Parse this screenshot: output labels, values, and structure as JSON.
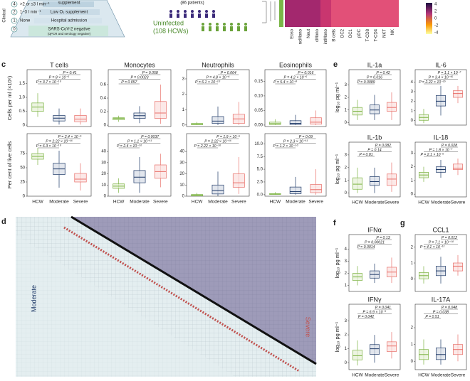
{
  "overview": {
    "clinical": "Clinical",
    "levels": [
      {
        "n": "4",
        "text": ">2 or ≤3 l min⁻¹",
        "note": "supplement"
      },
      {
        "n": "2",
        "text": "1–3 l min⁻¹",
        "note": "Low O₂ supplement"
      },
      {
        "n": "1",
        "text": "None",
        "note": "Hospital admission"
      },
      {
        "n": "0",
        "note": "SARS-CoV-2 negative",
        "sub": "(qPCR and serology negative)"
      }
    ],
    "patients": "(86 patients)",
    "uninfected": "Uninfected",
    "hcw": "(108 HCWs)"
  },
  "heatmap": {
    "labels": [
      "Eoso",
      "ncMono",
      "Neut",
      "cMono",
      "intMono",
      "B cells",
      "DC2",
      "DC1",
      "pDC",
      "T-CD8",
      "T-CD4",
      "NKT",
      "NK"
    ],
    "scale_ticks": [
      4,
      2,
      0,
      -2,
      -4
    ]
  },
  "letters": {
    "c": "c",
    "d": "d",
    "e": "e",
    "f": "f",
    "g": "g"
  },
  "axis_labels": {
    "cells": "Cells per ml (×10⁶)",
    "percent": "Per cent of live cells",
    "log": "log₁₀ pg ml⁻¹"
  },
  "groups": [
    "HCW",
    "Moderate",
    "Severe"
  ],
  "matrix": {
    "left": "Moderate",
    "right": "Severe"
  },
  "panels": [
    {
      "title": "T cells",
      "ylim": [
        -0.05,
        2.0
      ],
      "yticks": [
        0,
        0.5,
        {
          "value": 1,
          "label": "1.0"
        },
        1.5
      ],
      "pvalues": [
        "P = 0.41",
        "P = 8 × 10⁻⁵",
        "P = 3.7 × 10⁻¹⁰"
      ],
      "boxes": [
        [
          0.3,
          0.5,
          0.65,
          0.8,
          1.15
        ],
        [
          0.02,
          0.15,
          0.25,
          0.35,
          0.6
        ],
        [
          0.02,
          0.12,
          0.22,
          0.35,
          0.6
        ]
      ]
    },
    {
      "title": "Monocytes",
      "ylim": [
        -0.02,
        0.82
      ],
      "yticks": [
        0,
        0.2,
        0.4,
        0.6
      ],
      "pvalues": [
        "P = 0.058",
        "P = 0.0023",
        "P = 0.057"
      ],
      "boxes": [
        [
          0.05,
          0.08,
          0.1,
          0.11,
          0.14
        ],
        [
          0.03,
          0.1,
          0.14,
          0.18,
          0.28
        ],
        [
          0.02,
          0.1,
          0.18,
          0.35,
          0.6
        ]
      ]
    },
    {
      "title": "Neutrophils",
      "ylim": [
        -0.1,
        3.6
      ],
      "yticks": [
        0,
        1,
        2,
        3
      ],
      "pvalues": [
        "P = 0.064",
        "P = 4.8 × 10⁻⁶",
        "P = 6.1 × 10⁻¹⁰"
      ],
      "boxes": [
        [
          0,
          0.02,
          0.05,
          0.1,
          0.2
        ],
        [
          0,
          0.1,
          0.25,
          0.55,
          1.2
        ],
        [
          0,
          0.1,
          0.4,
          0.7,
          1.5
        ]
      ]
    },
    {
      "title": "Eosinophils",
      "ylim": [
        -0.005,
        0.19
      ],
      "yticks": [
        {
          "value": 0,
          "label": "0.00"
        },
        0.05,
        {
          "value": 0.1,
          "label": "0.10"
        },
        0.15
      ],
      "pvalues": [
        "P = 0.016",
        "P = 4.2 × 10⁻⁵",
        "P = 5.4 × 10⁻⁸"
      ],
      "boxes": [
        [
          0,
          0.002,
          0.005,
          0.01,
          0.02
        ],
        [
          0,
          0.002,
          0.006,
          0.015,
          0.035
        ],
        [
          0,
          0.003,
          0.01,
          0.025,
          0.05
        ]
      ]
    },
    {
      "ylim": [
        0,
        110
      ],
      "yticks": [
        0,
        25,
        50,
        75
      ],
      "pvalues": [
        "P = 2.4 × 10⁻⁶",
        "P = 2.22 × 10⁻¹⁶",
        "P = 6.3 × 10⁻¹⁰"
      ],
      "boxes": [
        [
          55,
          65,
          70,
          75,
          85
        ],
        [
          15,
          38,
          48,
          58,
          80
        ],
        [
          10,
          25,
          30,
          40,
          58
        ]
      ]
    },
    {
      "ylim": [
        0,
        56
      ],
      "yticks": [
        0,
        10,
        20,
        30,
        40
      ],
      "pvalues": [
        "P = 0.0037",
        "P = 1.1 × 10⁻¹¹",
        "P = 2.4 × 10⁻¹⁰"
      ],
      "boxes": [
        [
          3,
          7,
          9,
          11,
          16
        ],
        [
          3,
          12,
          17,
          23,
          35
        ],
        [
          8,
          16,
          22,
          28,
          38
        ]
      ]
    },
    {
      "ylim": [
        0,
        56
      ],
      "yticks": [
        0,
        10,
        20,
        30,
        40
      ],
      "pvalues": [
        "P = 1.9 × 10⁻⁵",
        "P = 2.22 × 10⁻¹⁶",
        "P = 2.22 × 10⁻¹⁶"
      ],
      "boxes": [
        [
          0,
          0.3,
          0.8,
          1.5,
          3
        ],
        [
          0,
          2,
          5,
          10,
          22
        ],
        [
          2,
          8,
          12,
          20,
          35
        ]
      ]
    },
    {
      "ylim": [
        -0.3,
        12
      ],
      "yticks": [
        {
          "value": 0,
          "label": "0.0"
        },
        2.5,
        {
          "value": 5,
          "label": "5.0"
        },
        7.5,
        {
          "value": 10,
          "label": "10.0"
        }
      ],
      "pvalues": [
        "P = 0.09",
        "P = 2.3 × 10⁻¹¹",
        "P = 1.2 × 10⁻¹⁰"
      ],
      "boxes": [
        [
          0,
          0.05,
          0.1,
          0.2,
          0.5
        ],
        [
          0,
          0.2,
          0.6,
          1.5,
          3.5
        ],
        [
          0,
          0.4,
          1,
          2,
          5
        ]
      ]
    },
    {
      "title": "IL-1a",
      "ylim": [
        -0.2,
        4.2
      ],
      "yticks": [
        0,
        1,
        2,
        3
      ],
      "pvalues": [
        "P = 0.42",
        "P = 0.016",
        "P = 0.0089"
      ],
      "boxes": [
        [
          0.2,
          0.6,
          0.9,
          1.2,
          1.8
        ],
        [
          0.2,
          0.7,
          1.0,
          1.4,
          2.2
        ],
        [
          0.2,
          0.9,
          1.2,
          1.6,
          2.4
        ]
      ]
    },
    {
      "title": "IL-6",
      "ylim": [
        -0.5,
        5.3
      ],
      "yticks": [
        0,
        1,
        2,
        3,
        4
      ],
      "pvalues": [
        "P = 1.1 × 10⁻⁷",
        "P = 3.4 × 10⁻¹⁵",
        "P = 2.22 × 10⁻¹⁶"
      ],
      "boxes": [
        [
          -0.3,
          0,
          0.3,
          0.6,
          1.2
        ],
        [
          0.5,
          1.5,
          2.0,
          2.6,
          3.6
        ],
        [
          1.8,
          2.4,
          2.8,
          3.1,
          3.6
        ]
      ]
    },
    {
      "title": "IL-1b",
      "ylim": [
        -0.3,
        4.0
      ],
      "yticks": [
        0,
        1,
        2,
        3
      ],
      "pvalues": [
        "P = 0.082",
        "P = 0.14",
        "P = 0.81"
      ],
      "boxes": [
        [
          0,
          0.3,
          0.7,
          1.2,
          2.0
        ],
        [
          0,
          0.6,
          0.9,
          1.3,
          2.0
        ],
        [
          0.1,
          0.6,
          1.1,
          1.5,
          2.4
        ]
      ]
    },
    {
      "title": "IL-18",
      "ylim": [
        -0.2,
        3.8
      ],
      "yticks": [
        0,
        1,
        2,
        3
      ],
      "pvalues": [
        "P = 0.028",
        "P = 1.8 × 10⁻⁷",
        "P = 2.1 × 10⁻⁵"
      ],
      "boxes": [
        [
          0.9,
          1.2,
          1.4,
          1.6,
          2.0
        ],
        [
          1.2,
          1.6,
          1.8,
          2.0,
          2.5
        ],
        [
          1.4,
          1.8,
          1.9,
          2.2,
          2.6
        ]
      ]
    },
    {
      "title": "IFNα",
      "ylim": [
        0.5,
        5.2
      ],
      "yticks": [
        1,
        2,
        3,
        4
      ],
      "pvalues": [
        "P = 0.13",
        "P = 0.00021",
        "P = 0.0014"
      ],
      "boxes": [
        [
          1.0,
          1.4,
          1.7,
          2.0,
          2.6
        ],
        [
          1.2,
          1.6,
          1.9,
          2.2,
          2.8
        ],
        [
          1.2,
          1.7,
          2.1,
          2.5,
          3.3
        ]
      ]
    },
    {
      "title": "CCL1",
      "ylim": [
        -0.8,
        2.8
      ],
      "yticks": [
        0,
        1,
        2
      ],
      "pvalues": [
        "P = 0.012",
        "P = 7.1 × 10⁻¹⁰",
        "P = 4.1 × 10⁻¹³"
      ],
      "boxes": [
        [
          -0.3,
          0,
          0.2,
          0.4,
          0.8
        ],
        [
          -0.3,
          0.2,
          0.5,
          0.8,
          1.4
        ],
        [
          0.2,
          0.5,
          0.8,
          1.0,
          1.5
        ]
      ]
    },
    {
      "title": "IFNγ",
      "ylim": [
        -0.5,
        4.2
      ],
      "yticks": [
        0,
        1,
        2,
        3
      ],
      "pvalues": [
        "P = 0.041",
        "P = 6.9 × 10⁻⁵",
        "P = 0.042"
      ],
      "boxes": [
        [
          -0.2,
          0.2,
          0.5,
          0.9,
          1.6
        ],
        [
          0,
          0.6,
          1.0,
          1.3,
          2.0
        ],
        [
          0.3,
          0.8,
          1.2,
          1.5,
          2.2
        ]
      ]
    },
    {
      "title": "IL-17A",
      "ylim": [
        -0.5,
        3.4
      ],
      "yticks": [
        0,
        1,
        2
      ],
      "pvalues": [
        "P = 0.048",
        "P = 0.038",
        "P = 0.51"
      ],
      "boxes": [
        [
          -0.2,
          0.1,
          0.4,
          0.7,
          1.3
        ],
        [
          -0.2,
          0.1,
          0.4,
          0.8,
          1.3
        ],
        [
          0,
          0.4,
          0.7,
          1.0,
          1.6
        ]
      ]
    }
  ]
}
